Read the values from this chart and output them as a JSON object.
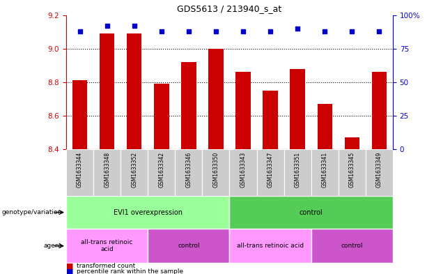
{
  "title": "GDS5613 / 213940_s_at",
  "samples": [
    "GSM1633344",
    "GSM1633348",
    "GSM1633352",
    "GSM1633342",
    "GSM1633346",
    "GSM1633350",
    "GSM1633343",
    "GSM1633347",
    "GSM1633351",
    "GSM1633341",
    "GSM1633345",
    "GSM1633349"
  ],
  "bar_values": [
    8.81,
    9.09,
    9.09,
    8.79,
    8.92,
    9.0,
    8.86,
    8.75,
    8.88,
    8.67,
    8.47,
    8.86
  ],
  "percentile_values": [
    88,
    92,
    92,
    88,
    88,
    88,
    88,
    88,
    90,
    88,
    88,
    88
  ],
  "bar_bottom": 8.4,
  "ylim_left": [
    8.4,
    9.2
  ],
  "ylim_right": [
    0,
    100
  ],
  "yticks_left": [
    8.4,
    8.6,
    8.8,
    9.0,
    9.2
  ],
  "yticks_right": [
    0,
    25,
    50,
    75,
    100
  ],
  "bar_color": "#cc0000",
  "percentile_color": "#0000cc",
  "genotype_groups": [
    {
      "label": "EVI1 overexpression",
      "start": 0,
      "end": 6,
      "color": "#99ff99"
    },
    {
      "label": "control",
      "start": 6,
      "end": 12,
      "color": "#55cc55"
    }
  ],
  "agent_groups": [
    {
      "label": "all-trans retinoic\nacid",
      "start": 0,
      "end": 3,
      "color": "#ff99ff"
    },
    {
      "label": "control",
      "start": 3,
      "end": 6,
      "color": "#cc55cc"
    },
    {
      "label": "all-trans retinoic acid",
      "start": 6,
      "end": 9,
      "color": "#ff99ff"
    },
    {
      "label": "control",
      "start": 9,
      "end": 12,
      "color": "#cc55cc"
    }
  ],
  "legend_items": [
    {
      "color": "#cc0000",
      "label": "transformed count"
    },
    {
      "color": "#0000cc",
      "label": "percentile rank within the sample"
    }
  ],
  "axis_label_color_left": "#cc0000",
  "axis_label_color_right": "#0000cc",
  "tick_bg_color": "#cccccc",
  "tick_edge_color": "#ffffff"
}
